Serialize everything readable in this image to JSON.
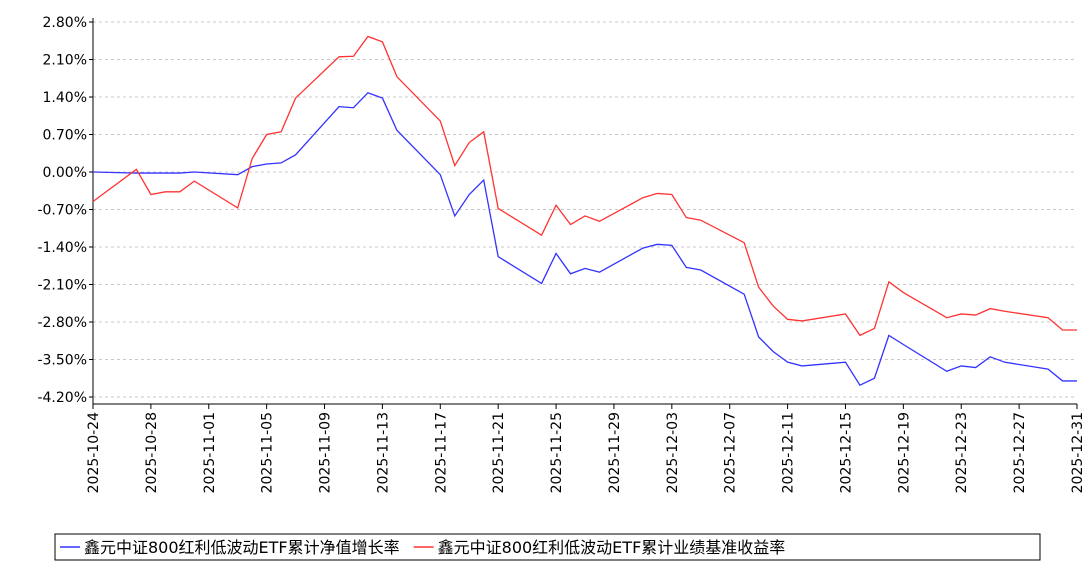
{
  "chart_data": {
    "type": "line",
    "x": [
      "2025-10-24",
      "2025-10-27",
      "2025-10-28",
      "2025-10-29",
      "2025-10-30",
      "2025-10-31",
      "2025-11-03",
      "2025-11-04",
      "2025-11-05",
      "2025-11-06",
      "2025-11-07",
      "2025-11-10",
      "2025-11-11",
      "2025-11-12",
      "2025-11-13",
      "2025-11-14",
      "2025-11-17",
      "2025-11-18",
      "2025-11-19",
      "2025-11-20",
      "2025-11-21",
      "2025-11-24",
      "2025-11-25",
      "2025-11-26",
      "2025-11-27",
      "2025-11-28",
      "2025-12-01",
      "2025-12-02",
      "2025-12-03",
      "2025-12-04",
      "2025-12-05",
      "2025-12-08",
      "2025-12-09",
      "2025-12-10",
      "2025-12-11",
      "2025-12-12",
      "2025-12-15",
      "2025-12-16",
      "2025-12-17",
      "2025-12-18",
      "2025-12-19",
      "2025-12-22",
      "2025-12-23",
      "2025-12-24",
      "2025-12-25",
      "2025-12-26",
      "2025-12-29",
      "2025-12-30",
      "2025-12-31"
    ],
    "series": [
      {
        "name": "鑫元中证800红利低波动ETF累计净值增长率",
        "color": "#3333ff",
        "values": [
          0.0,
          -0.02,
          -0.02,
          -0.02,
          -0.02,
          0.0,
          -0.05,
          0.1,
          0.15,
          0.17,
          0.32,
          1.22,
          1.2,
          1.48,
          1.38,
          0.78,
          -0.05,
          -0.82,
          -0.42,
          -0.15,
          -1.58,
          -2.08,
          -1.52,
          -1.9,
          -1.8,
          -1.87,
          -1.42,
          -1.35,
          -1.37,
          -1.78,
          -1.83,
          -2.28,
          -3.08,
          -3.35,
          -3.55,
          -3.62,
          -3.55,
          -3.98,
          -3.85,
          -3.05,
          -3.22,
          -3.72,
          -3.62,
          -3.65,
          -3.45,
          -3.55,
          -3.68,
          -3.9,
          -3.9
        ]
      },
      {
        "name": "鑫元中证800红利低波动ETF累计业绩基准收益率",
        "color": "#ff3333",
        "values": [
          -0.55,
          0.05,
          -0.42,
          -0.37,
          -0.37,
          -0.17,
          -0.67,
          0.25,
          0.7,
          0.75,
          1.38,
          2.15,
          2.16,
          2.53,
          2.43,
          1.78,
          0.95,
          0.12,
          0.55,
          0.75,
          -0.68,
          -1.18,
          -0.62,
          -0.98,
          -0.82,
          -0.92,
          -0.48,
          -0.4,
          -0.42,
          -0.85,
          -0.9,
          -1.32,
          -2.15,
          -2.5,
          -2.75,
          -2.78,
          -2.65,
          -3.05,
          -2.92,
          -2.05,
          -2.25,
          -2.72,
          -2.65,
          -2.67,
          -2.55,
          -2.6,
          -2.72,
          -2.95,
          -2.95
        ]
      }
    ],
    "xlim": [
      "2025-10-24",
      "2025-12-31"
    ],
    "xticks": [
      "2025-10-24",
      "2025-10-28",
      "2025-11-01",
      "2025-11-05",
      "2025-11-09",
      "2025-11-13",
      "2025-11-17",
      "2025-11-21",
      "2025-11-25",
      "2025-11-29",
      "2025-12-03",
      "2025-12-07",
      "2025-12-11",
      "2025-12-15",
      "2025-12-19",
      "2025-12-23",
      "2025-12-27",
      "2025-12-31"
    ],
    "ylim": [
      -4.2,
      2.8
    ],
    "yticks": [
      {
        "value": 2.8,
        "label": "2.80%"
      },
      {
        "value": 2.1,
        "label": "2.10%"
      },
      {
        "value": 1.4,
        "label": "1.40%"
      },
      {
        "value": 0.7,
        "label": "0.70%"
      },
      {
        "value": 0,
        "label": "0.00%"
      },
      {
        "value": -0.7,
        "label": "-0.70%"
      },
      {
        "value": -1.4,
        "label": "-1.40%"
      },
      {
        "value": -2.1,
        "label": "-2.10%"
      },
      {
        "value": -2.8,
        "label": "-2.80%"
      },
      {
        "value": -3.5,
        "label": "-3.50%"
      },
      {
        "value": -4.2,
        "label": "-4.20%"
      }
    ],
    "grid": true
  }
}
